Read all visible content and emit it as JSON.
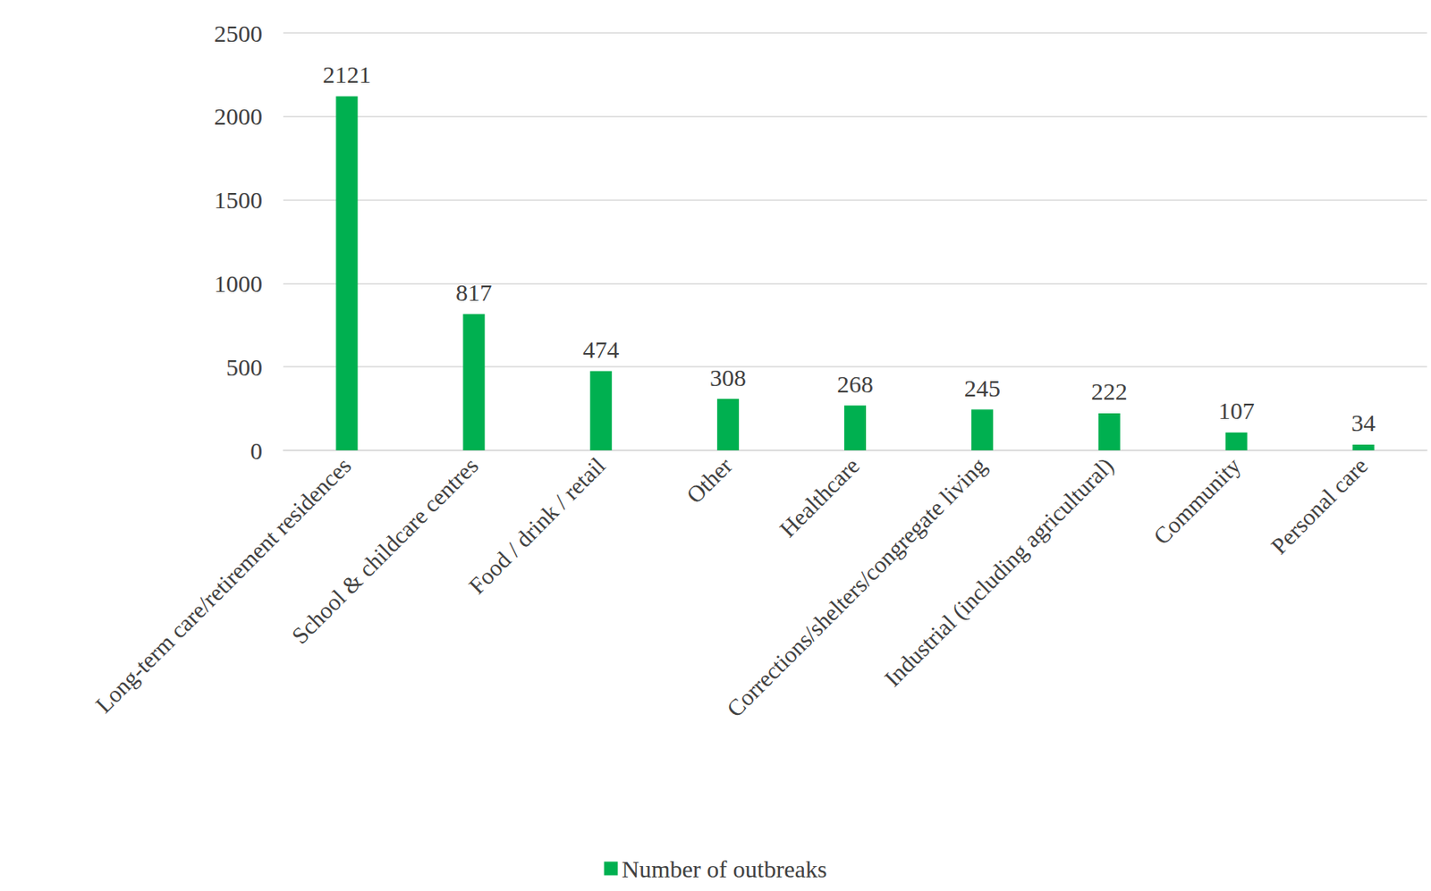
{
  "chart_data": {
    "type": "bar",
    "categories": [
      "Long-term care/retirement residences",
      "School & childcare centres",
      "Food / drink / retail",
      "Other",
      "Healthcare",
      "Corrections/shelters/congregate living",
      "Industrial (including agricultural)",
      "Community",
      "Personal care"
    ],
    "series": [
      {
        "name": "Number of outbreaks",
        "color": "#00b050",
        "values": [
          2121,
          817,
          474,
          308,
          268,
          245,
          222,
          107,
          34
        ]
      }
    ],
    "ylim": [
      0,
      2500
    ],
    "yticks": [
      0,
      500,
      1000,
      1500,
      2000,
      2500
    ],
    "grid": true,
    "data_labels": true,
    "legend": "bottom"
  }
}
